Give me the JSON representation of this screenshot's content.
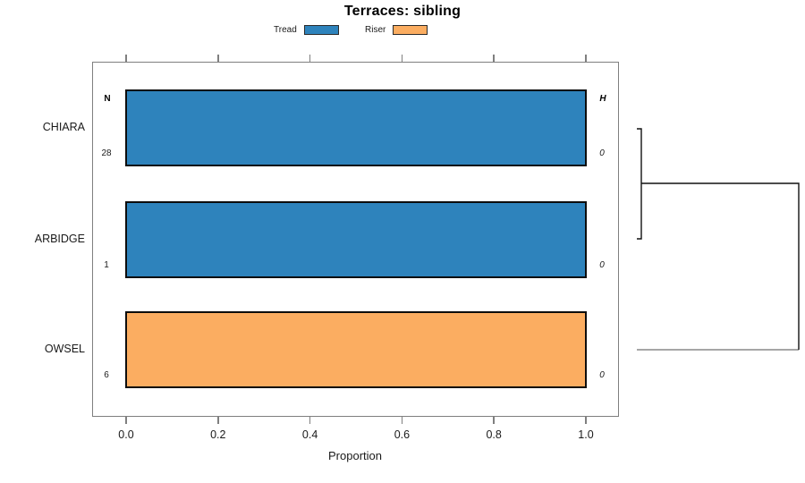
{
  "title": "Terraces: sibling",
  "legend": {
    "items": [
      {
        "label": "Tread",
        "color": "#2E83BC"
      },
      {
        "label": "Riser",
        "color": "#FBAD61"
      }
    ]
  },
  "axis": {
    "xlabel": "Proportion",
    "tick_labels": [
      "0.0",
      "0.2",
      "0.4",
      "0.6",
      "0.8",
      "1.0"
    ]
  },
  "columns": {
    "n_header": "N",
    "h_header": "H"
  },
  "chart_data": {
    "type": "bar",
    "orientation": "horizontal",
    "title": "Terraces: sibling",
    "xlabel": "Proportion",
    "xlim": [
      0,
      1
    ],
    "xticks": [
      0.0,
      0.2,
      0.4,
      0.6,
      0.8,
      1.0
    ],
    "grid": false,
    "legend_position": "top",
    "categories": [
      "CHIARA",
      "ARBIDGE",
      "OWSEL"
    ],
    "series": [
      {
        "name": "Tread",
        "color": "#2E83BC",
        "values": [
          1.0,
          1.0,
          0.0
        ]
      },
      {
        "name": "Riser",
        "color": "#FBAD61",
        "values": [
          0.0,
          0.0,
          1.0
        ]
      }
    ],
    "rows": [
      {
        "label": "CHIARA",
        "segment": "Tread",
        "proportion": 1.0,
        "n": "28",
        "h": "0"
      },
      {
        "label": "ARBIDGE",
        "segment": "Tread",
        "proportion": 1.0,
        "n": "1",
        "h": "0"
      },
      {
        "label": "OWSEL",
        "segment": "Riser",
        "proportion": 1.0,
        "n": "6",
        "h": "0"
      }
    ],
    "dendrogram": {
      "side": "right",
      "merges": [
        {
          "members": [
            "CHIARA",
            "ARBIDGE"
          ],
          "order": 1
        },
        {
          "members": [
            "CHIARA+ARBIDGE",
            "OWSEL"
          ],
          "order": 2
        }
      ]
    }
  }
}
